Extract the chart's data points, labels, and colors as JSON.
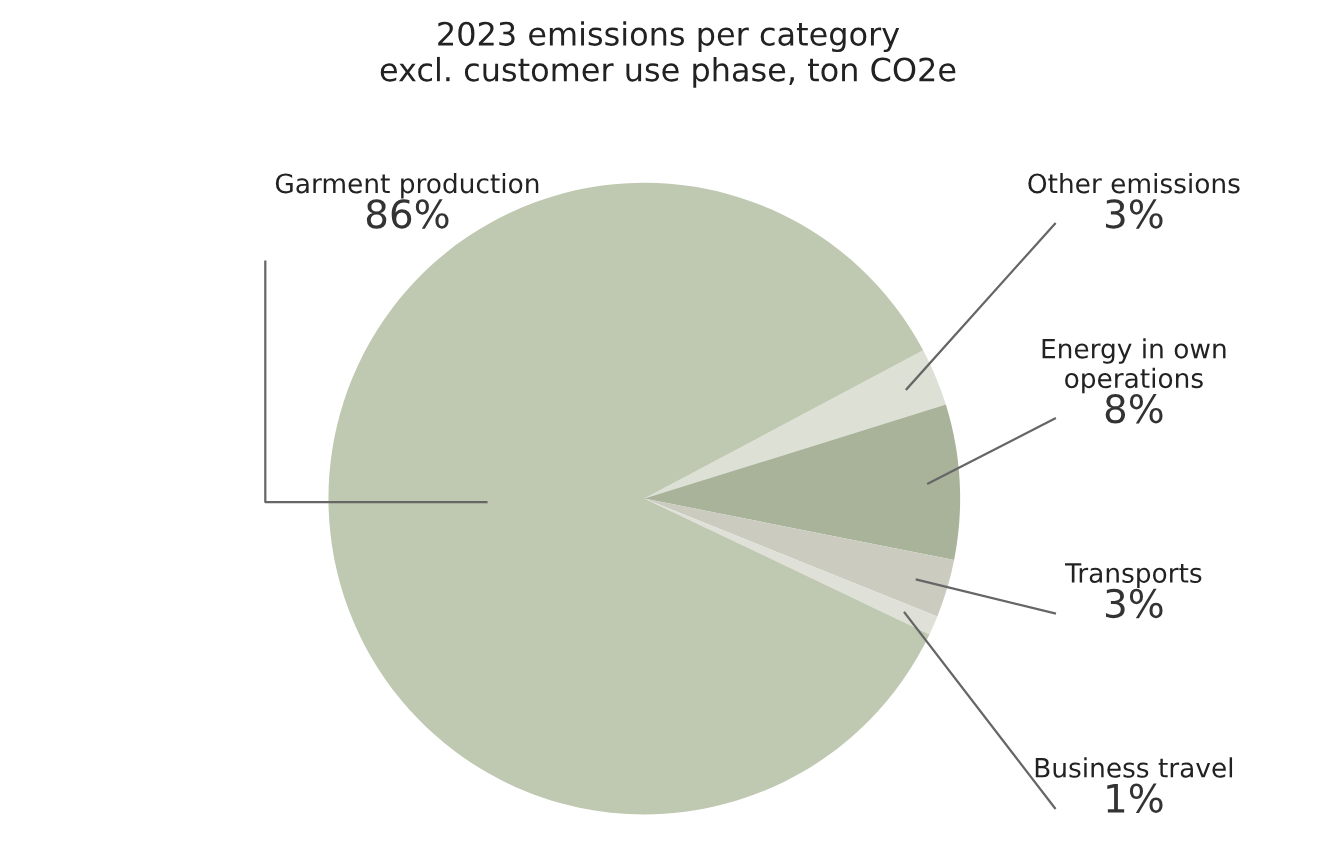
{
  "chart_data": {
    "type": "pie",
    "title": "2023 emissions per category\nexcl. customer use phase, ton CO2e",
    "categories": [
      "Other emissions",
      "Energy in own\noperations",
      "Transports",
      "Business travel",
      "Garment production"
    ],
    "values": [
      3,
      8,
      3,
      1,
      86
    ],
    "value_labels": [
      "3%",
      "8%",
      "3%",
      "1%",
      "86%"
    ],
    "colors": [
      "#dde0d5",
      "#a9b39a",
      "#cccbc0",
      "#dfe1d8",
      "#bfc8b0"
    ]
  }
}
